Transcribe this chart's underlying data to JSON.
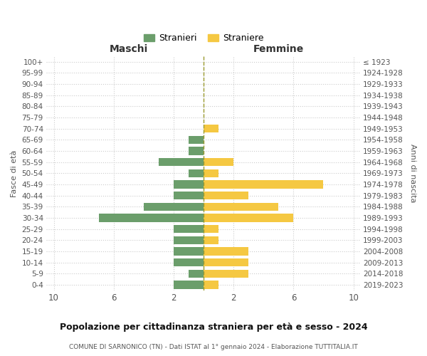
{
  "age_groups": [
    "0-4",
    "5-9",
    "10-14",
    "15-19",
    "20-24",
    "25-29",
    "30-34",
    "35-39",
    "40-44",
    "45-49",
    "50-54",
    "55-59",
    "60-64",
    "65-69",
    "70-74",
    "75-79",
    "80-84",
    "85-89",
    "90-94",
    "95-99",
    "100+"
  ],
  "birth_years": [
    "2019-2023",
    "2014-2018",
    "2009-2013",
    "2004-2008",
    "1999-2003",
    "1994-1998",
    "1989-1993",
    "1984-1988",
    "1979-1983",
    "1974-1978",
    "1969-1973",
    "1964-1968",
    "1959-1963",
    "1954-1958",
    "1949-1953",
    "1944-1948",
    "1939-1943",
    "1934-1938",
    "1929-1933",
    "1924-1928",
    "≤ 1923"
  ],
  "stranieri": [
    2,
    1,
    2,
    2,
    2,
    2,
    7,
    4,
    2,
    2,
    1,
    3,
    1,
    1,
    0,
    0,
    0,
    0,
    0,
    0,
    0
  ],
  "straniere": [
    1,
    3,
    3,
    3,
    1,
    1,
    6,
    5,
    3,
    8,
    1,
    2,
    0,
    0,
    1,
    0,
    0,
    0,
    0,
    0,
    0
  ],
  "male_color": "#6b9e6b",
  "female_color": "#f5c842",
  "background_color": "#ffffff",
  "grid_color": "#cccccc",
  "dashed_line_color": "#9b9b2e",
  "title": "Popolazione per cittadinanza straniera per età e sesso - 2024",
  "subtitle": "COMUNE DI SARNONICO (TN) - Dati ISTAT al 1° gennaio 2024 - Elaborazione TUTTITALIA.IT",
  "xlabel_left": "Maschi",
  "xlabel_right": "Femmine",
  "ylabel_left": "Fasce di età",
  "ylabel_right": "Anni di nascita",
  "xlim": 10.5
}
